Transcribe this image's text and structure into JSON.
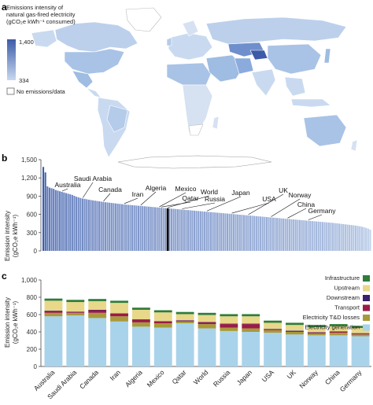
{
  "panel_a": {
    "label": "a",
    "legend_title": [
      "Emissions intensity of",
      "natural gas-fired electricity",
      "(gCO₂e kWh⁻¹ consumed)"
    ],
    "scale_max": "1,400",
    "scale_min": "334",
    "no_data_label": "No emissions/data",
    "colors": {
      "low": "#c8d8ef",
      "high": "#3d5ba8",
      "land": "#d6e1f2",
      "ocean": "#ffffff"
    }
  },
  "panel_b": {
    "label": "b",
    "ylabel": [
      "Emission intensity",
      "(gCO₂e kWh⁻¹)"
    ],
    "world_label": "World",
    "annotations": [
      "Australia",
      "Saudi Arabia",
      "Canada",
      "Iran",
      "Algeria",
      "Mexico",
      "Qatar",
      "World",
      "Russia",
      "Japan",
      "USA",
      "UK",
      "Norway",
      "China",
      "Germany"
    ]
  },
  "panel_c": {
    "label": "c",
    "ylabel": [
      "Emission intensity",
      "(gCO₂e kWh⁻¹)"
    ],
    "legend": [
      "Infrastructure",
      "Upstream",
      "Downstream",
      "Transport",
      "Electricity T&D losses",
      "Electricity generation"
    ]
  },
  "chart_data": [
    {
      "type": "bar",
      "ylim": [
        0,
        1500
      ],
      "yticks": [
        "0",
        "300",
        "600",
        "900",
        "1,200",
        "1,500"
      ],
      "grid": false,
      "n_countries": 159,
      "values": [
        1380,
        1290,
        1060,
        1040,
        1030,
        1020,
        1000,
        990,
        980,
        970,
        960,
        950,
        940,
        930,
        920,
        905,
        890,
        880,
        870,
        860,
        855,
        848,
        842,
        836,
        830,
        825,
        820,
        815,
        810,
        805,
        800,
        796,
        792,
        788,
        784,
        780,
        776,
        772,
        768,
        764,
        760,
        757,
        754,
        751,
        748,
        745,
        742,
        739,
        736,
        733,
        730,
        727,
        724,
        721,
        718,
        715,
        712,
        709,
        706,
        703,
        700,
        697,
        694,
        691,
        688,
        685,
        682,
        679,
        676,
        673,
        670,
        667,
        664,
        661,
        658,
        655,
        652,
        649,
        646,
        643,
        640,
        637,
        634,
        631,
        628,
        625,
        622,
        619,
        616,
        613,
        610,
        607,
        604,
        601,
        598,
        595,
        592,
        589,
        586,
        583,
        580,
        577,
        574,
        571,
        568,
        565,
        562,
        559,
        556,
        553,
        550,
        547,
        544,
        541,
        538,
        535,
        532,
        529,
        526,
        523,
        520,
        517,
        514,
        511,
        508,
        505,
        502,
        499,
        496,
        493,
        490,
        487,
        484,
        481,
        478,
        475,
        472,
        469,
        466,
        463,
        460,
        456,
        452,
        448,
        444,
        440,
        436,
        432,
        428,
        424,
        420,
        415,
        410,
        404,
        397,
        388,
        378,
        366,
        350
      ],
      "world_index": 60,
      "world_value": 650
    },
    {
      "type": "bar",
      "stacked": true,
      "ylim": [
        0,
        1000
      ],
      "yticks": [
        "0",
        "200",
        "400",
        "600",
        "800",
        "1,000"
      ],
      "grid": false,
      "legend_position": "top-right",
      "categories": [
        "Australia",
        "Saudi Arabia",
        "Canada",
        "Iran",
        "Algeria",
        "Mexico",
        "Qatar",
        "World",
        "Russia",
        "Japan",
        "USA",
        "UK",
        "Norway",
        "China",
        "Germany"
      ],
      "series": [
        {
          "name": "Electricity generation",
          "color": "#a9d3ea",
          "values": [
            580,
            590,
            560,
            520,
            460,
            450,
            500,
            440,
            410,
            400,
            390,
            370,
            360,
            360,
            350
          ]
        },
        {
          "name": "Electricity T&D losses",
          "color": "#a89a3a",
          "values": [
            40,
            30,
            60,
            60,
            50,
            50,
            20,
            50,
            40,
            40,
            30,
            30,
            20,
            30,
            20
          ]
        },
        {
          "name": "Transport",
          "color": "#9b1b46",
          "values": [
            20,
            10,
            30,
            30,
            30,
            20,
            10,
            20,
            40,
            50,
            10,
            10,
            10,
            10,
            10
          ]
        },
        {
          "name": "Downstream",
          "color": "#3a1f6e",
          "values": [
            5,
            5,
            5,
            5,
            5,
            5,
            5,
            5,
            5,
            5,
            5,
            5,
            5,
            5,
            5
          ]
        },
        {
          "name": "Upstream",
          "color": "#e8d88a",
          "values": [
            115,
            110,
            100,
            120,
            110,
            100,
            70,
            80,
            85,
            85,
            70,
            65,
            60,
            60,
            60
          ]
        },
        {
          "name": "Infrastructure",
          "color": "#2f7d3a",
          "values": [
            25,
            25,
            25,
            25,
            25,
            25,
            25,
            25,
            25,
            25,
            25,
            25,
            25,
            25,
            25
          ]
        }
      ]
    }
  ]
}
